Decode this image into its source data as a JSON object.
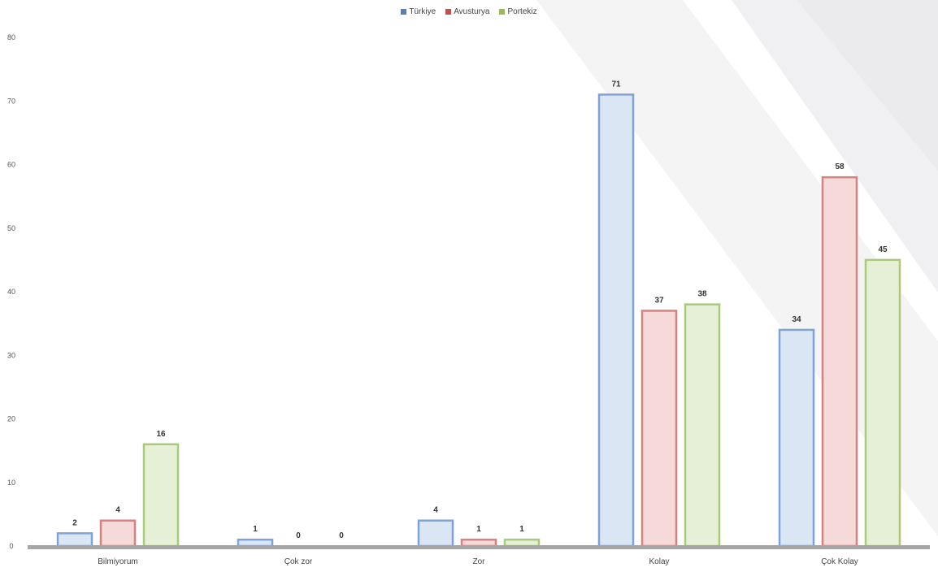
{
  "chart_data": {
    "type": "bar",
    "title": "",
    "xlabel": "",
    "ylabel": "",
    "categories": [
      "Bilmiyorum",
      "Çok zor",
      "Zor",
      "Kolay",
      "Çok Kolay"
    ],
    "series": [
      {
        "name": "Türkiye",
        "values": [
          2,
          1,
          4,
          71,
          34
        ],
        "fill": "#dbe6f4",
        "stroke": "#7fa3d6",
        "legend_color": "#4f81bd"
      },
      {
        "name": "Avusturya",
        "values": [
          4,
          0,
          1,
          37,
          58
        ],
        "fill": "#f5dad9",
        "stroke": "#d9817f",
        "legend_color": "#c0504d"
      },
      {
        "name": "Portekiz",
        "values": [
          16,
          0,
          1,
          38,
          45
        ],
        "fill": "#e6f0d6",
        "stroke": "#a9c97b",
        "legend_color": "#9bbb59"
      }
    ],
    "ylim": [
      0,
      80
    ],
    "yticks": [
      "0",
      "10",
      "20",
      "30",
      "40",
      "50",
      "60",
      "70",
      "80"
    ],
    "grid": false,
    "legend_position": "top-center",
    "data_labels": true,
    "axis_color": "#a6a6a6",
    "background_decor": "diagonal light-gray stripes, top-right"
  }
}
